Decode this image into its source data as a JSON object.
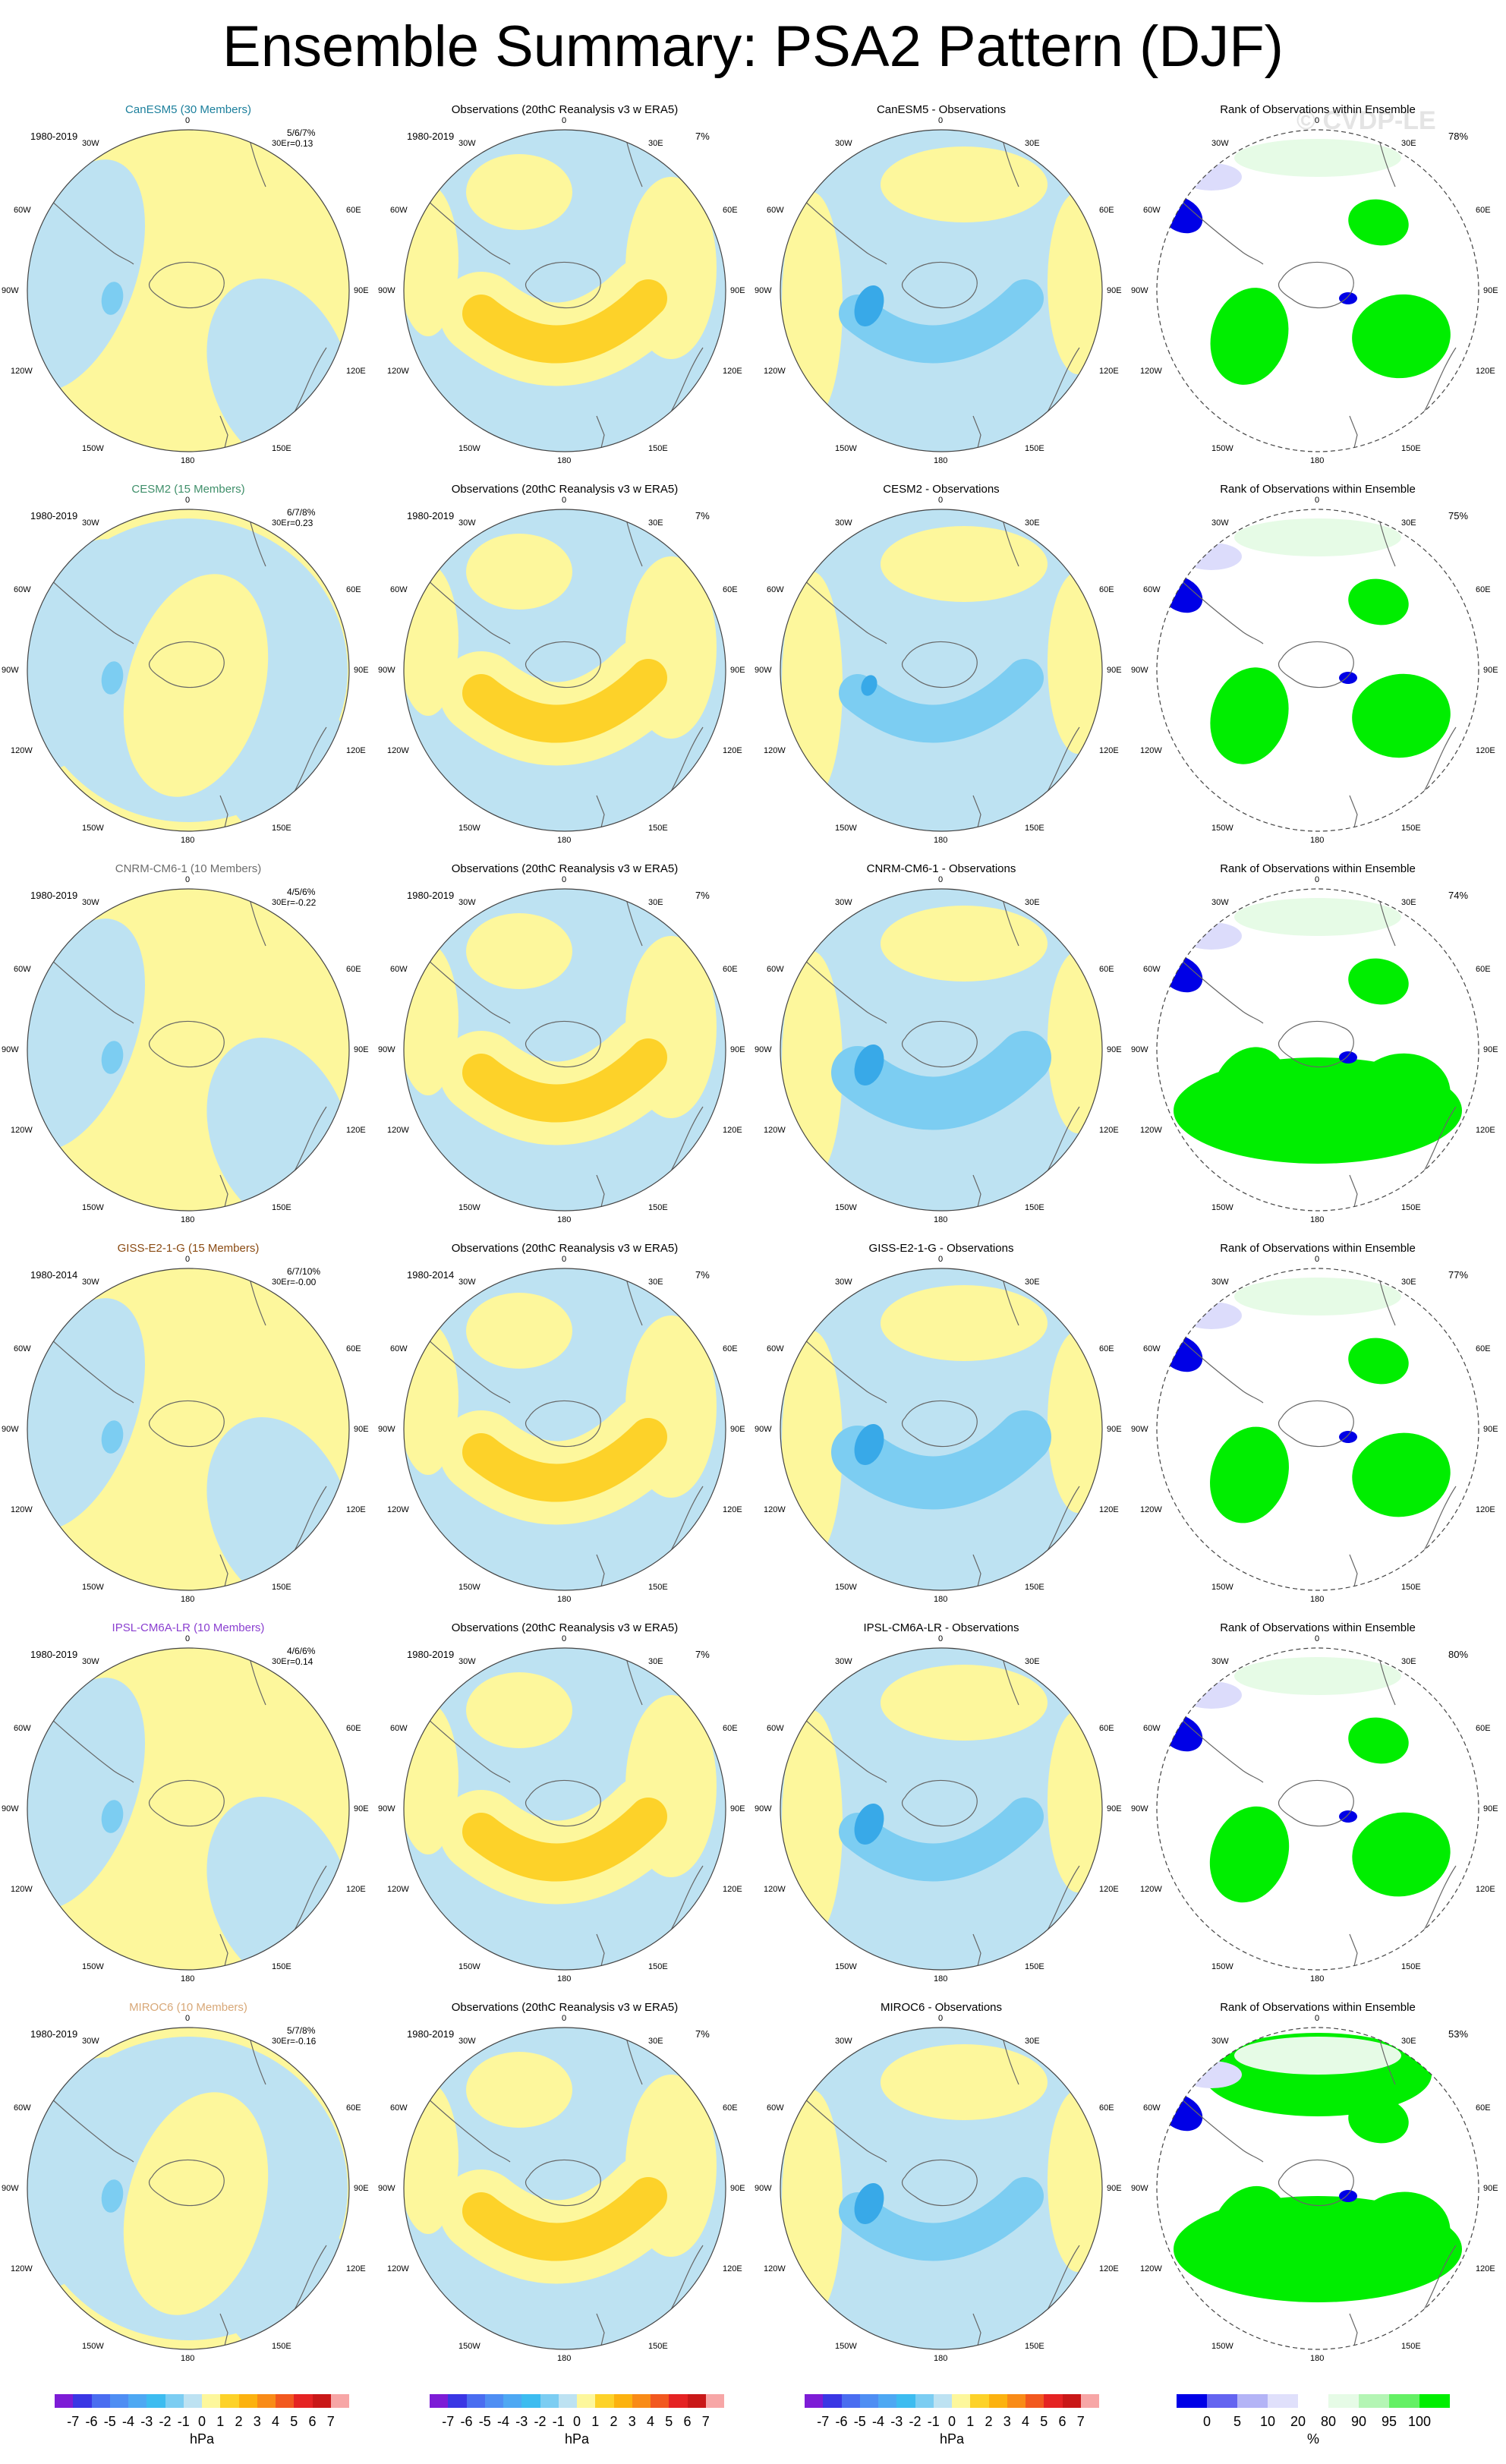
{
  "title": "Ensemble Summary: PSA2 Pattern (DJF)",
  "watermark": "© CVDP-LE",
  "colors": {
    "land_outline": "#666666",
    "neutral_pos": "#fdf79c",
    "neutral_neg": "#bde2f2",
    "pos1": "#fdd229",
    "neg1": "#7ccdf2",
    "neg2": "#38a9e8",
    "rank_low": "#0000e6",
    "rank_low_light": "#dcdcfb",
    "rank_high": "#00ee00",
    "rank_high_light": "#e6fbe6"
  },
  "rows": [
    {
      "model": "CanESM5 (30 Members)",
      "model_short": "CanESM5",
      "model_color": "#1b7f9c",
      "period": "1980-2019",
      "spread": "5/6/7%",
      "corr": "r=0.13",
      "obs_pct": "7%",
      "rank_pct": "78%",
      "model_anomaly": "neutral",
      "diff_pattern": "moderate",
      "rank_pattern": "a"
    },
    {
      "model": "CESM2 (15 Members)",
      "model_short": "CESM2",
      "model_color": "#3f8f6a",
      "period": "1980-2019",
      "spread": "6/7/8%",
      "corr": "r=0.23",
      "obs_pct": "7%",
      "rank_pct": "75%",
      "model_anomaly": "weak",
      "diff_pattern": "weak",
      "rank_pattern": "b"
    },
    {
      "model": "CNRM-CM6-1 (10 Members)",
      "model_short": "CNRM-CM6-1",
      "model_color": "#6d6d6d",
      "period": "1980-2019",
      "spread": "4/5/6%",
      "corr": "r=-0.22",
      "obs_pct": "7%",
      "rank_pct": "74%",
      "model_anomaly": "neutral",
      "diff_pattern": "strong",
      "rank_pattern": "c"
    },
    {
      "model": "GISS-E2-1-G (15 Members)",
      "model_short": "GISS-E2-1-G",
      "model_color": "#8a4a12",
      "period": "1980-2014",
      "spread": "6/7/10%",
      "corr": "r=-0.00",
      "obs_pct": "7%",
      "rank_pct": "77%",
      "model_anomaly": "neutral",
      "diff_pattern": "strong",
      "rank_pattern": "d"
    },
    {
      "model": "IPSL-CM6A-LR (10 Members)",
      "model_short": "IPSL-CM6A-LR",
      "model_color": "#8a3fd0",
      "period": "1980-2019",
      "spread": "4/6/6%",
      "corr": "r=0.14",
      "obs_pct": "7%",
      "rank_pct": "80%",
      "model_anomaly": "neutral",
      "diff_pattern": "moderate",
      "rank_pattern": "e"
    },
    {
      "model": "MIROC6 (10 Members)",
      "model_short": "MIROC6",
      "model_color": "#d8a878",
      "period": "1980-2019",
      "spread": "5/7/8%",
      "corr": "r=-0.16",
      "obs_pct": "7%",
      "rank_pct": "53%",
      "model_anomaly": "weak",
      "diff_pattern": "moderate",
      "rank_pattern": "f"
    }
  ],
  "panel_titles": {
    "obs": "Observations (20thC Reanalysis v3 w ERA5)",
    "diff_suffix": " - Observations",
    "rank": "Rank of Observations within Ensemble"
  },
  "map_labels": {
    "top": "0",
    "bottom": "180",
    "left": "90W",
    "right": "90E",
    "upper_left": "30W",
    "upper_right": "30E",
    "left_upper": "60W",
    "right_upper": "60E",
    "left_lower": "120W",
    "right_lower": "120E",
    "lower_left": "150W",
    "lower_right": "150E"
  },
  "chart_data": {
    "type": "heatmap",
    "title": "Ensemble Summary: PSA2 Pattern (DJF)",
    "layout": "6 rows x 4 columns of south polar stereographic maps",
    "columns": [
      "Model ensemble mean",
      "Observations (20thC Reanalysis v3 w ERA5)",
      "Model - Observations",
      "Rank of Observations within Ensemble"
    ],
    "anomaly_colorbar": {
      "unit": "hPa",
      "ticks": [
        "-7",
        "-6",
        "-5",
        "-4",
        "-3",
        "-2",
        "-1",
        "0",
        "1",
        "2",
        "3",
        "4",
        "5",
        "6",
        "7"
      ],
      "colors": [
        "#7d1cd6",
        "#3a36e4",
        "#4a6df0",
        "#4f8ef3",
        "#4ea8f3",
        "#3dbcf0",
        "#7ccdf2",
        "#bde2f2",
        "#fdf79c",
        "#fdd229",
        "#fcb20f",
        "#f98b17",
        "#f2581f",
        "#e52323",
        "#c91818",
        "#f7a6a6"
      ]
    },
    "rank_colorbar": {
      "unit": "%",
      "ticks": [
        "0",
        "5",
        "10",
        "20",
        "80",
        "90",
        "95",
        "100"
      ],
      "colors": [
        "#0000e6",
        "#6464f0",
        "#b4b4f6",
        "#e0e0fb",
        "#ffffff",
        "#e6fbe6",
        "#b4f5b4",
        "#64f064",
        "#00ee00"
      ]
    },
    "rows": [
      {
        "model": "CanESM5",
        "members": 30,
        "period": "1980-2019",
        "pct_variance": "5/6/7%",
        "pattern_corr": 0.13,
        "obs_pct_variance": "7%",
        "rank_pct": "78%"
      },
      {
        "model": "CESM2",
        "members": 15,
        "period": "1980-2019",
        "pct_variance": "6/7/8%",
        "pattern_corr": 0.23,
        "obs_pct_variance": "7%",
        "rank_pct": "75%"
      },
      {
        "model": "CNRM-CM6-1",
        "members": 10,
        "period": "1980-2019",
        "pct_variance": "4/5/6%",
        "pattern_corr": -0.22,
        "obs_pct_variance": "7%",
        "rank_pct": "74%"
      },
      {
        "model": "GISS-E2-1-G",
        "members": 15,
        "period": "1980-2014",
        "pct_variance": "6/7/10%",
        "pattern_corr": -0.0,
        "obs_pct_variance": "7%",
        "rank_pct": "77%"
      },
      {
        "model": "IPSL-CM6A-LR",
        "members": 10,
        "period": "1980-2019",
        "pct_variance": "4/6/6%",
        "pattern_corr": 0.14,
        "obs_pct_variance": "7%",
        "rank_pct": "80%"
      },
      {
        "model": "MIROC6",
        "members": 10,
        "period": "1980-2019",
        "pct_variance": "5/7/8%",
        "pattern_corr": -0.16,
        "obs_pct_variance": "7%",
        "rank_pct": "53%"
      }
    ]
  }
}
